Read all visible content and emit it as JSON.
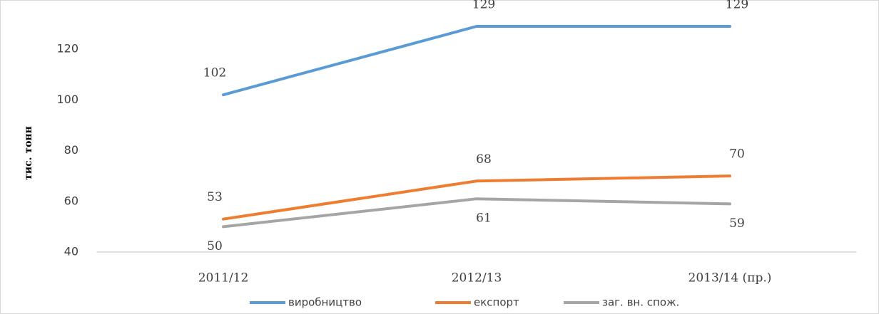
{
  "chart_data": {
    "type": "line",
    "y_label": "тис. тонн",
    "categories": [
      "2011/12",
      "2012/13",
      "2013/14 (пр.)"
    ],
    "series": [
      {
        "name": "виробництво",
        "color": "#5b9bd5",
        "values": [
          102,
          129,
          129
        ]
      },
      {
        "name": "експорт",
        "color": "#ed7d31",
        "values": [
          53,
          68,
          70
        ]
      },
      {
        "name": "заг. вн. спож.",
        "color": "#a5a5a5",
        "values": [
          50,
          61,
          59
        ]
      }
    ],
    "ylim": [
      40,
      135
    ],
    "yticks": [
      40,
      60,
      80,
      100,
      120
    ],
    "grid": false,
    "legend": "bottom"
  }
}
